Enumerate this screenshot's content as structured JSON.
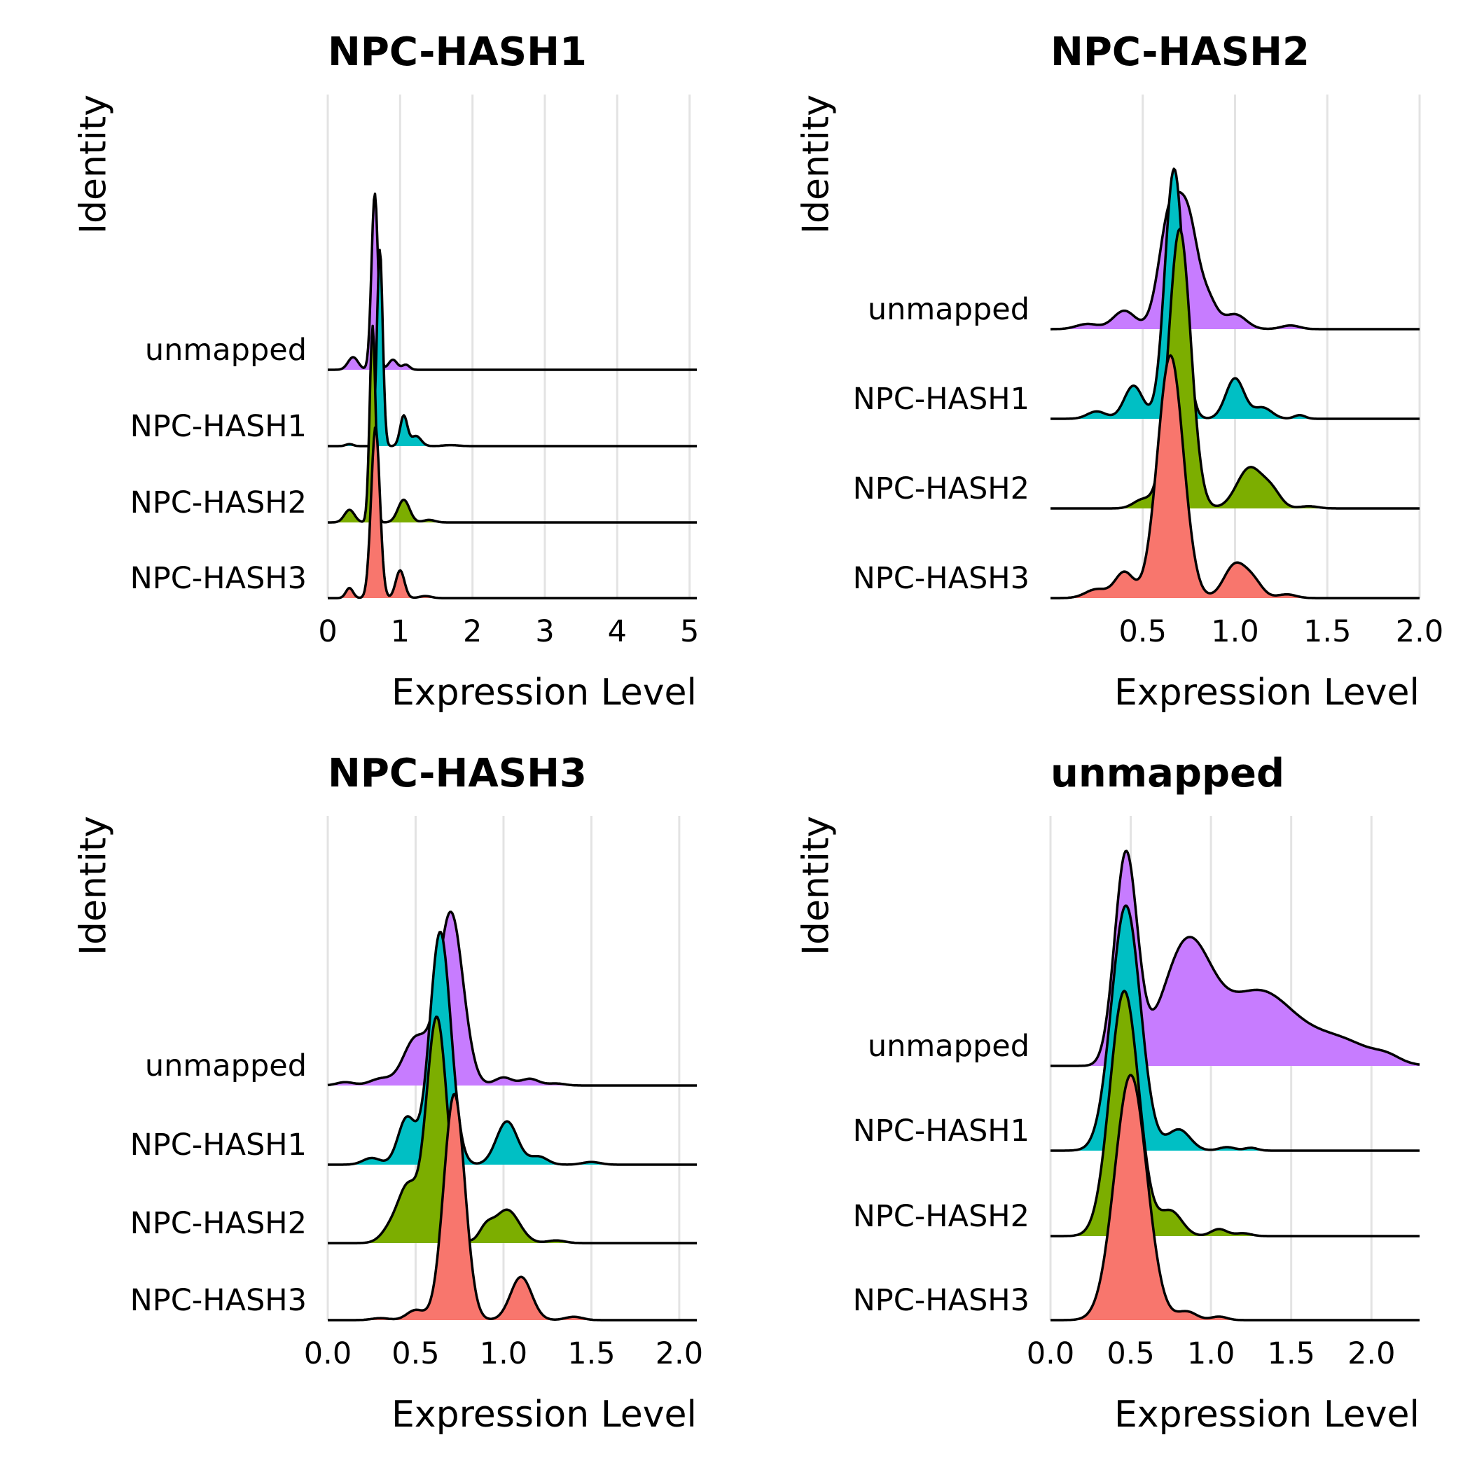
{
  "colors": {
    "NPC-HASH1": "#00BFC4",
    "NPC-HASH2": "#7CAE00",
    "NPC-HASH3": "#F8766D",
    "unmapped": "#C77CFF",
    "grid": "#e3e3e3"
  },
  "chart_data": [
    {
      "type": "ridgeline",
      "title": "NPC-HASH1",
      "xlabel": "Expression Level",
      "ylabel": "Identity",
      "xlim": [
        0,
        5.1
      ],
      "xticks": [
        0,
        1,
        2,
        3,
        4,
        5
      ],
      "tick_labels": [
        "0",
        "1",
        "2",
        "3",
        "4",
        "5"
      ],
      "categories": [
        "NPC-HASH3",
        "NPC-HASH2",
        "NPC-HASH1",
        "unmapped"
      ],
      "series": [
        {
          "name": "NPC-HASH3",
          "x0": 0.0,
          "x1": 5.1,
          "peaks": [
            [
              0.3,
              0.05,
              0.2
            ],
            [
              0.66,
              0.06,
              3.4
            ],
            [
              1.0,
              0.06,
              0.55
            ],
            [
              1.35,
              0.08,
              0.04
            ]
          ]
        },
        {
          "name": "NPC-HASH2",
          "x0": 0.0,
          "x1": 5.1,
          "peaks": [
            [
              0.3,
              0.07,
              0.25
            ],
            [
              0.62,
              0.04,
              3.9
            ],
            [
              1.05,
              0.08,
              0.45
            ],
            [
              1.4,
              0.08,
              0.05
            ]
          ]
        },
        {
          "name": "NPC-HASH1",
          "x0": 0.0,
          "x1": 5.1,
          "peaks": [
            [
              0.3,
              0.05,
              0.04
            ],
            [
              0.72,
              0.04,
              3.9
            ],
            [
              1.05,
              0.05,
              0.6
            ],
            [
              1.22,
              0.07,
              0.2
            ],
            [
              1.7,
              0.1,
              0.02
            ]
          ]
        },
        {
          "name": "unmapped",
          "x0": 0.0,
          "x1": 5.1,
          "peaks": [
            [
              0.35,
              0.07,
              0.25
            ],
            [
              0.65,
              0.045,
              3.5
            ],
            [
              0.9,
              0.06,
              0.2
            ],
            [
              1.08,
              0.05,
              0.1
            ]
          ]
        }
      ]
    },
    {
      "type": "ridgeline",
      "title": "NPC-HASH2",
      "xlabel": "Expression Level",
      "ylabel": "Identity",
      "xlim": [
        0,
        2.0
      ],
      "xticks": [
        0.5,
        1.0,
        1.5,
        2.0
      ],
      "tick_labels": [
        "0.5",
        "1.0",
        "1.5",
        "2.0"
      ],
      "categories": [
        "NPC-HASH3",
        "NPC-HASH2",
        "NPC-HASH1",
        "unmapped"
      ],
      "series": [
        {
          "name": "NPC-HASH3",
          "x0": 0.0,
          "x1": 2.0,
          "peaks": [
            [
              0.25,
              0.06,
              0.12
            ],
            [
              0.4,
              0.05,
              0.35
            ],
            [
              0.65,
              0.07,
              3.3
            ],
            [
              1.0,
              0.06,
              0.45
            ],
            [
              1.1,
              0.05,
              0.2
            ],
            [
              1.28,
              0.05,
              0.05
            ]
          ]
        },
        {
          "name": "NPC-HASH2",
          "x0": 0.0,
          "x1": 2.0,
          "peaks": [
            [
              0.5,
              0.05,
              0.12
            ],
            [
              0.7,
              0.06,
              3.8
            ],
            [
              1.08,
              0.07,
              0.55
            ],
            [
              1.2,
              0.05,
              0.2
            ],
            [
              1.4,
              0.05,
              0.03
            ]
          ]
        },
        {
          "name": "NPC-HASH1",
          "x0": 0.0,
          "x1": 2.0,
          "peaks": [
            [
              0.25,
              0.05,
              0.1
            ],
            [
              0.45,
              0.05,
              0.45
            ],
            [
              0.67,
              0.05,
              3.4
            ],
            [
              1.0,
              0.05,
              0.55
            ],
            [
              1.15,
              0.05,
              0.15
            ],
            [
              1.35,
              0.03,
              0.05
            ]
          ]
        },
        {
          "name": "unmapped",
          "x0": 0.0,
          "x1": 2.0,
          "peaks": [
            [
              0.2,
              0.06,
              0.07
            ],
            [
              0.4,
              0.06,
              0.25
            ],
            [
              0.65,
              0.06,
              1.6
            ],
            [
              0.75,
              0.05,
              1.2
            ],
            [
              0.85,
              0.05,
              0.4
            ],
            [
              1.0,
              0.06,
              0.2
            ],
            [
              1.3,
              0.05,
              0.05
            ]
          ]
        }
      ]
    },
    {
      "type": "ridgeline",
      "title": "NPC-HASH3",
      "xlabel": "Expression Level",
      "ylabel": "Identity",
      "xlim": [
        0,
        2.1
      ],
      "xticks": [
        0.0,
        0.5,
        1.0,
        1.5,
        2.0
      ],
      "tick_labels": [
        "0.0",
        "0.5",
        "1.0",
        "1.5",
        "2.0"
      ],
      "categories": [
        "NPC-HASH3",
        "NPC-HASH2",
        "NPC-HASH1",
        "unmapped"
      ],
      "series": [
        {
          "name": "NPC-HASH3",
          "x0": 0.0,
          "x1": 2.1,
          "peaks": [
            [
              0.3,
              0.05,
              0.03
            ],
            [
              0.5,
              0.05,
              0.15
            ],
            [
              0.72,
              0.06,
              3.4
            ],
            [
              1.1,
              0.06,
              0.65
            ],
            [
              1.4,
              0.05,
              0.05
            ]
          ]
        },
        {
          "name": "NPC-HASH2",
          "x0": 0.0,
          "x1": 2.1,
          "peaks": [
            [
              0.38,
              0.06,
              0.3
            ],
            [
              0.46,
              0.05,
              0.7
            ],
            [
              0.62,
              0.06,
              3.4
            ],
            [
              0.9,
              0.04,
              0.2
            ],
            [
              1.02,
              0.07,
              0.5
            ],
            [
              1.3,
              0.05,
              0.04
            ]
          ]
        },
        {
          "name": "NPC-HASH1",
          "x0": 0.0,
          "x1": 2.1,
          "peaks": [
            [
              0.25,
              0.05,
              0.1
            ],
            [
              0.45,
              0.05,
              0.7
            ],
            [
              0.64,
              0.06,
              3.5
            ],
            [
              1.02,
              0.06,
              0.65
            ],
            [
              1.2,
              0.05,
              0.12
            ],
            [
              1.5,
              0.05,
              0.04
            ]
          ]
        },
        {
          "name": "unmapped",
          "x0": 0.0,
          "x1": 2.1,
          "peaks": [
            [
              0.1,
              0.05,
              0.05
            ],
            [
              0.3,
              0.06,
              0.1
            ],
            [
              0.5,
              0.07,
              0.7
            ],
            [
              0.7,
              0.07,
              2.6
            ],
            [
              1.0,
              0.05,
              0.12
            ],
            [
              1.15,
              0.05,
              0.1
            ],
            [
              1.3,
              0.05,
              0.03
            ]
          ]
        }
      ]
    },
    {
      "type": "ridgeline",
      "title": "unmapped",
      "xlabel": "Expression Level",
      "ylabel": "Identity",
      "xlim": [
        0,
        2.3
      ],
      "xticks": [
        0.0,
        0.5,
        1.0,
        1.5,
        2.0
      ],
      "tick_labels": [
        "0.0",
        "0.5",
        "1.0",
        "1.5",
        "2.0"
      ],
      "categories": [
        "NPC-HASH3",
        "NPC-HASH2",
        "NPC-HASH1",
        "unmapped"
      ],
      "series": [
        {
          "name": "NPC-HASH3",
          "x0": 0.0,
          "x1": 2.3,
          "peaks": [
            [
              0.5,
              0.1,
              3.5
            ],
            [
              0.85,
              0.06,
              0.12
            ],
            [
              1.05,
              0.05,
              0.05
            ]
          ]
        },
        {
          "name": "NPC-HASH2",
          "x0": 0.0,
          "x1": 2.3,
          "peaks": [
            [
              0.46,
              0.09,
              3.5
            ],
            [
              0.75,
              0.07,
              0.35
            ],
            [
              1.05,
              0.05,
              0.1
            ],
            [
              1.2,
              0.05,
              0.04
            ]
          ]
        },
        {
          "name": "NPC-HASH1",
          "x0": 0.0,
          "x1": 2.3,
          "peaks": [
            [
              0.47,
              0.09,
              3.5
            ],
            [
              0.8,
              0.07,
              0.3
            ],
            [
              1.1,
              0.05,
              0.05
            ],
            [
              1.25,
              0.04,
              0.04
            ]
          ]
        },
        {
          "name": "unmapped",
          "x0": 0.0,
          "x1": 2.3,
          "peaks": [
            [
              0.47,
              0.07,
              3.0
            ],
            [
              0.85,
              0.15,
              1.7
            ],
            [
              1.3,
              0.22,
              1.05
            ],
            [
              1.8,
              0.2,
              0.35
            ],
            [
              2.1,
              0.08,
              0.08
            ]
          ]
        }
      ]
    }
  ]
}
